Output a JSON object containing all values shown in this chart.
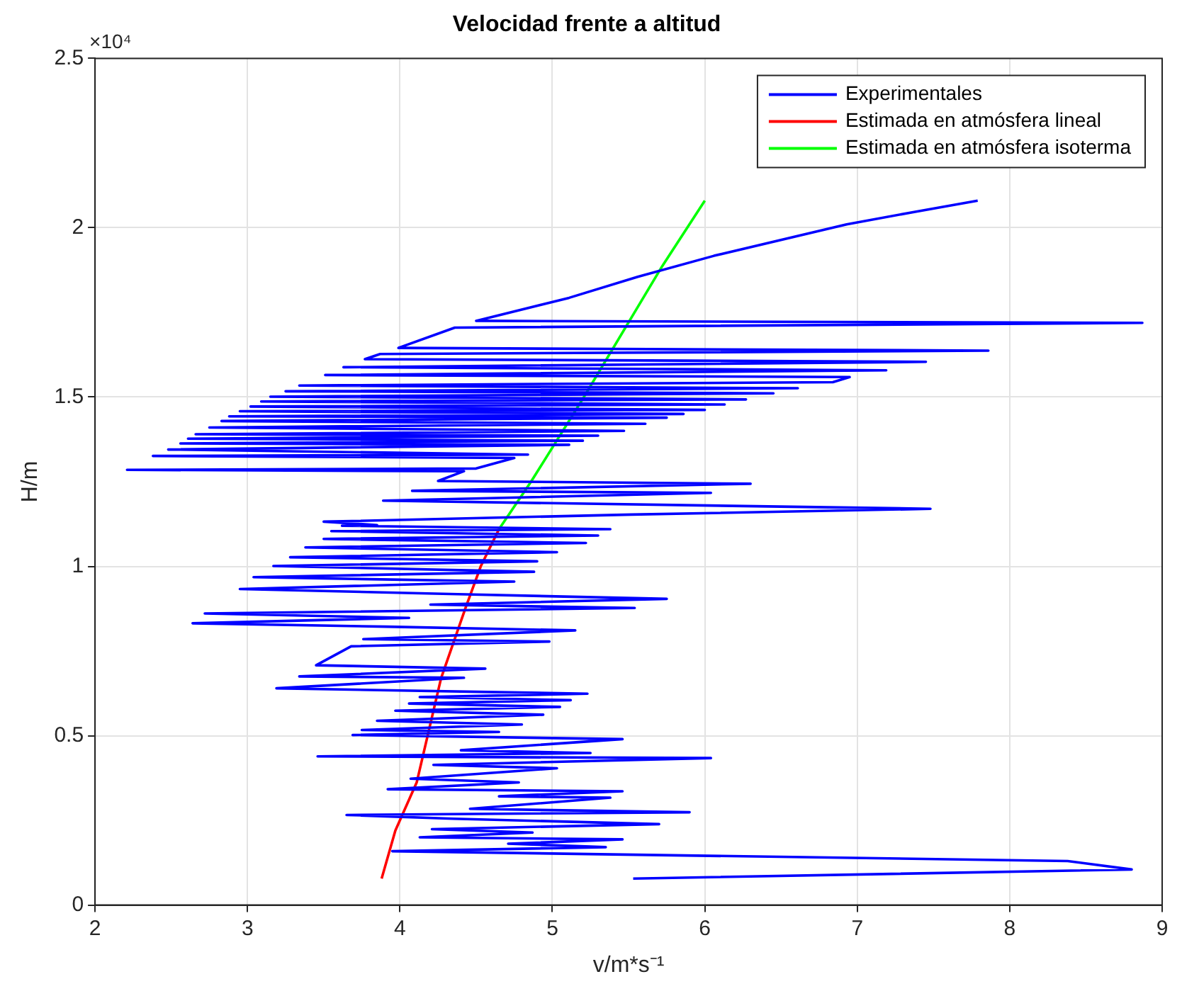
{
  "chart_data": {
    "type": "line",
    "title": "Velocidad frente a altitud",
    "xlabel": "v/m*s⁻¹",
    "ylabel": "H/m",
    "annotations": [
      "×10⁴"
    ],
    "xlim": [
      2,
      9
    ],
    "xticks": [
      2,
      3,
      4,
      5,
      6,
      7,
      8,
      9
    ],
    "ylim": [
      0,
      2.5
    ],
    "yticks": [
      0,
      0.5,
      1,
      1.5,
      2,
      2.5
    ],
    "grid": true,
    "legend": "top right",
    "marker": "none",
    "line_style": "solid",
    "series": [
      {
        "name": "Experimentales",
        "color": "#0000ff",
        "x": [
          5.53,
          8.8,
          8.38,
          3.95,
          5.35,
          4.71,
          5.46,
          4.13,
          4.87,
          4.21,
          5.7,
          4.35,
          3.65,
          5.9,
          4.46,
          5.38,
          4.65,
          5.46,
          3.92,
          4.78,
          4.07,
          5.03,
          4.22,
          6.04,
          3.46,
          5.25,
          4.4,
          5.46,
          3.69,
          4.65,
          3.75,
          4.8,
          3.85,
          4.94,
          3.97,
          5.05,
          4.06,
          5.12,
          4.13,
          5.23,
          3.19,
          4.42,
          3.34,
          4.56,
          3.45,
          3.68,
          4.98,
          3.76,
          5.15,
          3.91,
          2.64,
          4.06,
          2.72,
          5.54,
          4.2,
          5.75,
          4.38,
          2.95,
          4.75,
          3.04,
          4.88,
          3.17,
          4.9,
          3.28,
          5.03,
          3.38,
          5.22,
          3.5,
          5.3,
          3.55,
          5.38,
          3.62,
          3.85,
          3.5,
          5.52,
          7.48,
          3.89,
          6.04,
          4.08,
          6.3,
          4.25,
          4.42,
          2.21,
          4.5,
          4.75,
          2.38,
          4.84,
          2.48,
          5.11,
          2.56,
          5.2,
          2.61,
          5.3,
          2.66,
          5.47,
          2.75,
          5.61,
          2.83,
          5.75,
          2.88,
          5.86,
          2.95,
          6.0,
          3.02,
          6.13,
          3.09,
          6.27,
          3.15,
          6.45,
          3.25,
          6.61,
          3.34,
          6.84,
          6.95,
          3.51,
          7.19,
          3.63,
          7.45,
          3.77,
          3.87,
          7.86,
          3.99,
          4.36,
          8.87,
          4.5,
          5.11,
          5.56,
          6.06,
          6.93,
          7.38,
          7.79
        ],
        "values": [
          0.078,
          0.105,
          0.13,
          0.159,
          0.171,
          0.181,
          0.194,
          0.2,
          0.214,
          0.224,
          0.239,
          0.255,
          0.266,
          0.274,
          0.284,
          0.317,
          0.321,
          0.336,
          0.342,
          0.362,
          0.373,
          0.404,
          0.414,
          0.434,
          0.439,
          0.449,
          0.457,
          0.49,
          0.502,
          0.511,
          0.517,
          0.533,
          0.544,
          0.562,
          0.574,
          0.585,
          0.595,
          0.605,
          0.614,
          0.624,
          0.64,
          0.671,
          0.675,
          0.698,
          0.708,
          0.764,
          0.778,
          0.785,
          0.811,
          0.822,
          0.832,
          0.848,
          0.861,
          0.877,
          0.887,
          0.904,
          0.918,
          0.933,
          0.955,
          0.968,
          0.984,
          1.001,
          1.015,
          1.027,
          1.042,
          1.056,
          1.069,
          1.081,
          1.091,
          1.104,
          1.11,
          1.12,
          1.122,
          1.132,
          1.153,
          1.17,
          1.194,
          1.217,
          1.223,
          1.244,
          1.252,
          1.281,
          1.285,
          1.289,
          1.32,
          1.326,
          1.33,
          1.345,
          1.359,
          1.363,
          1.371,
          1.377,
          1.386,
          1.39,
          1.4,
          1.41,
          1.421,
          1.429,
          1.439,
          1.443,
          1.45,
          1.458,
          1.462,
          1.472,
          1.478,
          1.487,
          1.493,
          1.501,
          1.511,
          1.517,
          1.526,
          1.534,
          1.544,
          1.559,
          1.565,
          1.579,
          1.588,
          1.604,
          1.612,
          1.627,
          1.637,
          1.645,
          1.705,
          1.719,
          1.725,
          1.793,
          1.855,
          1.917,
          2.01,
          2.047,
          2.08
        ]
      },
      {
        "name": "Estimada en atmósfera lineal",
        "color": "#ff0000",
        "x": [
          3.88,
          3.97,
          4.11,
          4.27,
          4.43,
          4.53,
          4.65
        ],
        "values": [
          0.078,
          0.22,
          0.362,
          0.67,
          0.877,
          1.0,
          1.11
        ]
      },
      {
        "name": "Estimada en atmósfera isoterma",
        "color": "#00ff00",
        "x": [
          4.65,
          4.86,
          5.2,
          5.72,
          6.0
        ],
        "values": [
          1.11,
          1.25,
          1.495,
          1.886,
          2.08
        ]
      }
    ]
  }
}
